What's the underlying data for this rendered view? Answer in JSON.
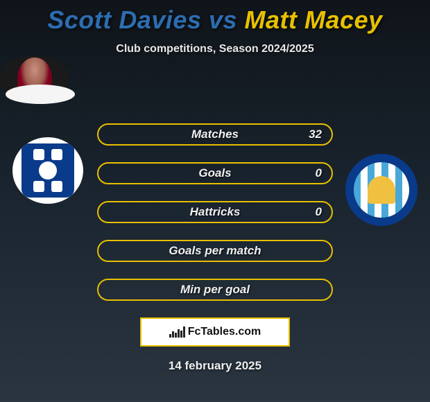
{
  "header": {
    "player1": "Scott Davies",
    "vs": "vs",
    "player2": "Matt Macey",
    "player1_color": "#2d6db0",
    "player2_color": "#e8c000",
    "subtitle": "Club competitions, Season 2024/2025"
  },
  "stats": [
    {
      "label": "Matches",
      "value": "32",
      "border_color": "#e8c000"
    },
    {
      "label": "Goals",
      "value": "0",
      "border_color": "#e8c000"
    },
    {
      "label": "Hattricks",
      "value": "0",
      "border_color": "#e8c000"
    },
    {
      "label": "Goals per match",
      "value": "",
      "border_color": "#e8c000"
    },
    {
      "label": "Min per goal",
      "value": "",
      "border_color": "#e8c000"
    }
  ],
  "footer": {
    "brand": "FcTables.com",
    "date": "14 february 2025"
  },
  "styling": {
    "body_bg_from": "#0f1419",
    "body_bg_to": "#2a3540",
    "stat_row_bg": "transparent",
    "title_fontsize": 36,
    "subtitle_fontsize": 16,
    "stat_label_fontsize": 17,
    "badge_left_primary": "#0a3a8a",
    "badge_right_primary": "#0a3a8a",
    "badge_right_stripes": [
      "#4aa8d8",
      "#ffffff"
    ],
    "footer_border": "#e8c000"
  }
}
